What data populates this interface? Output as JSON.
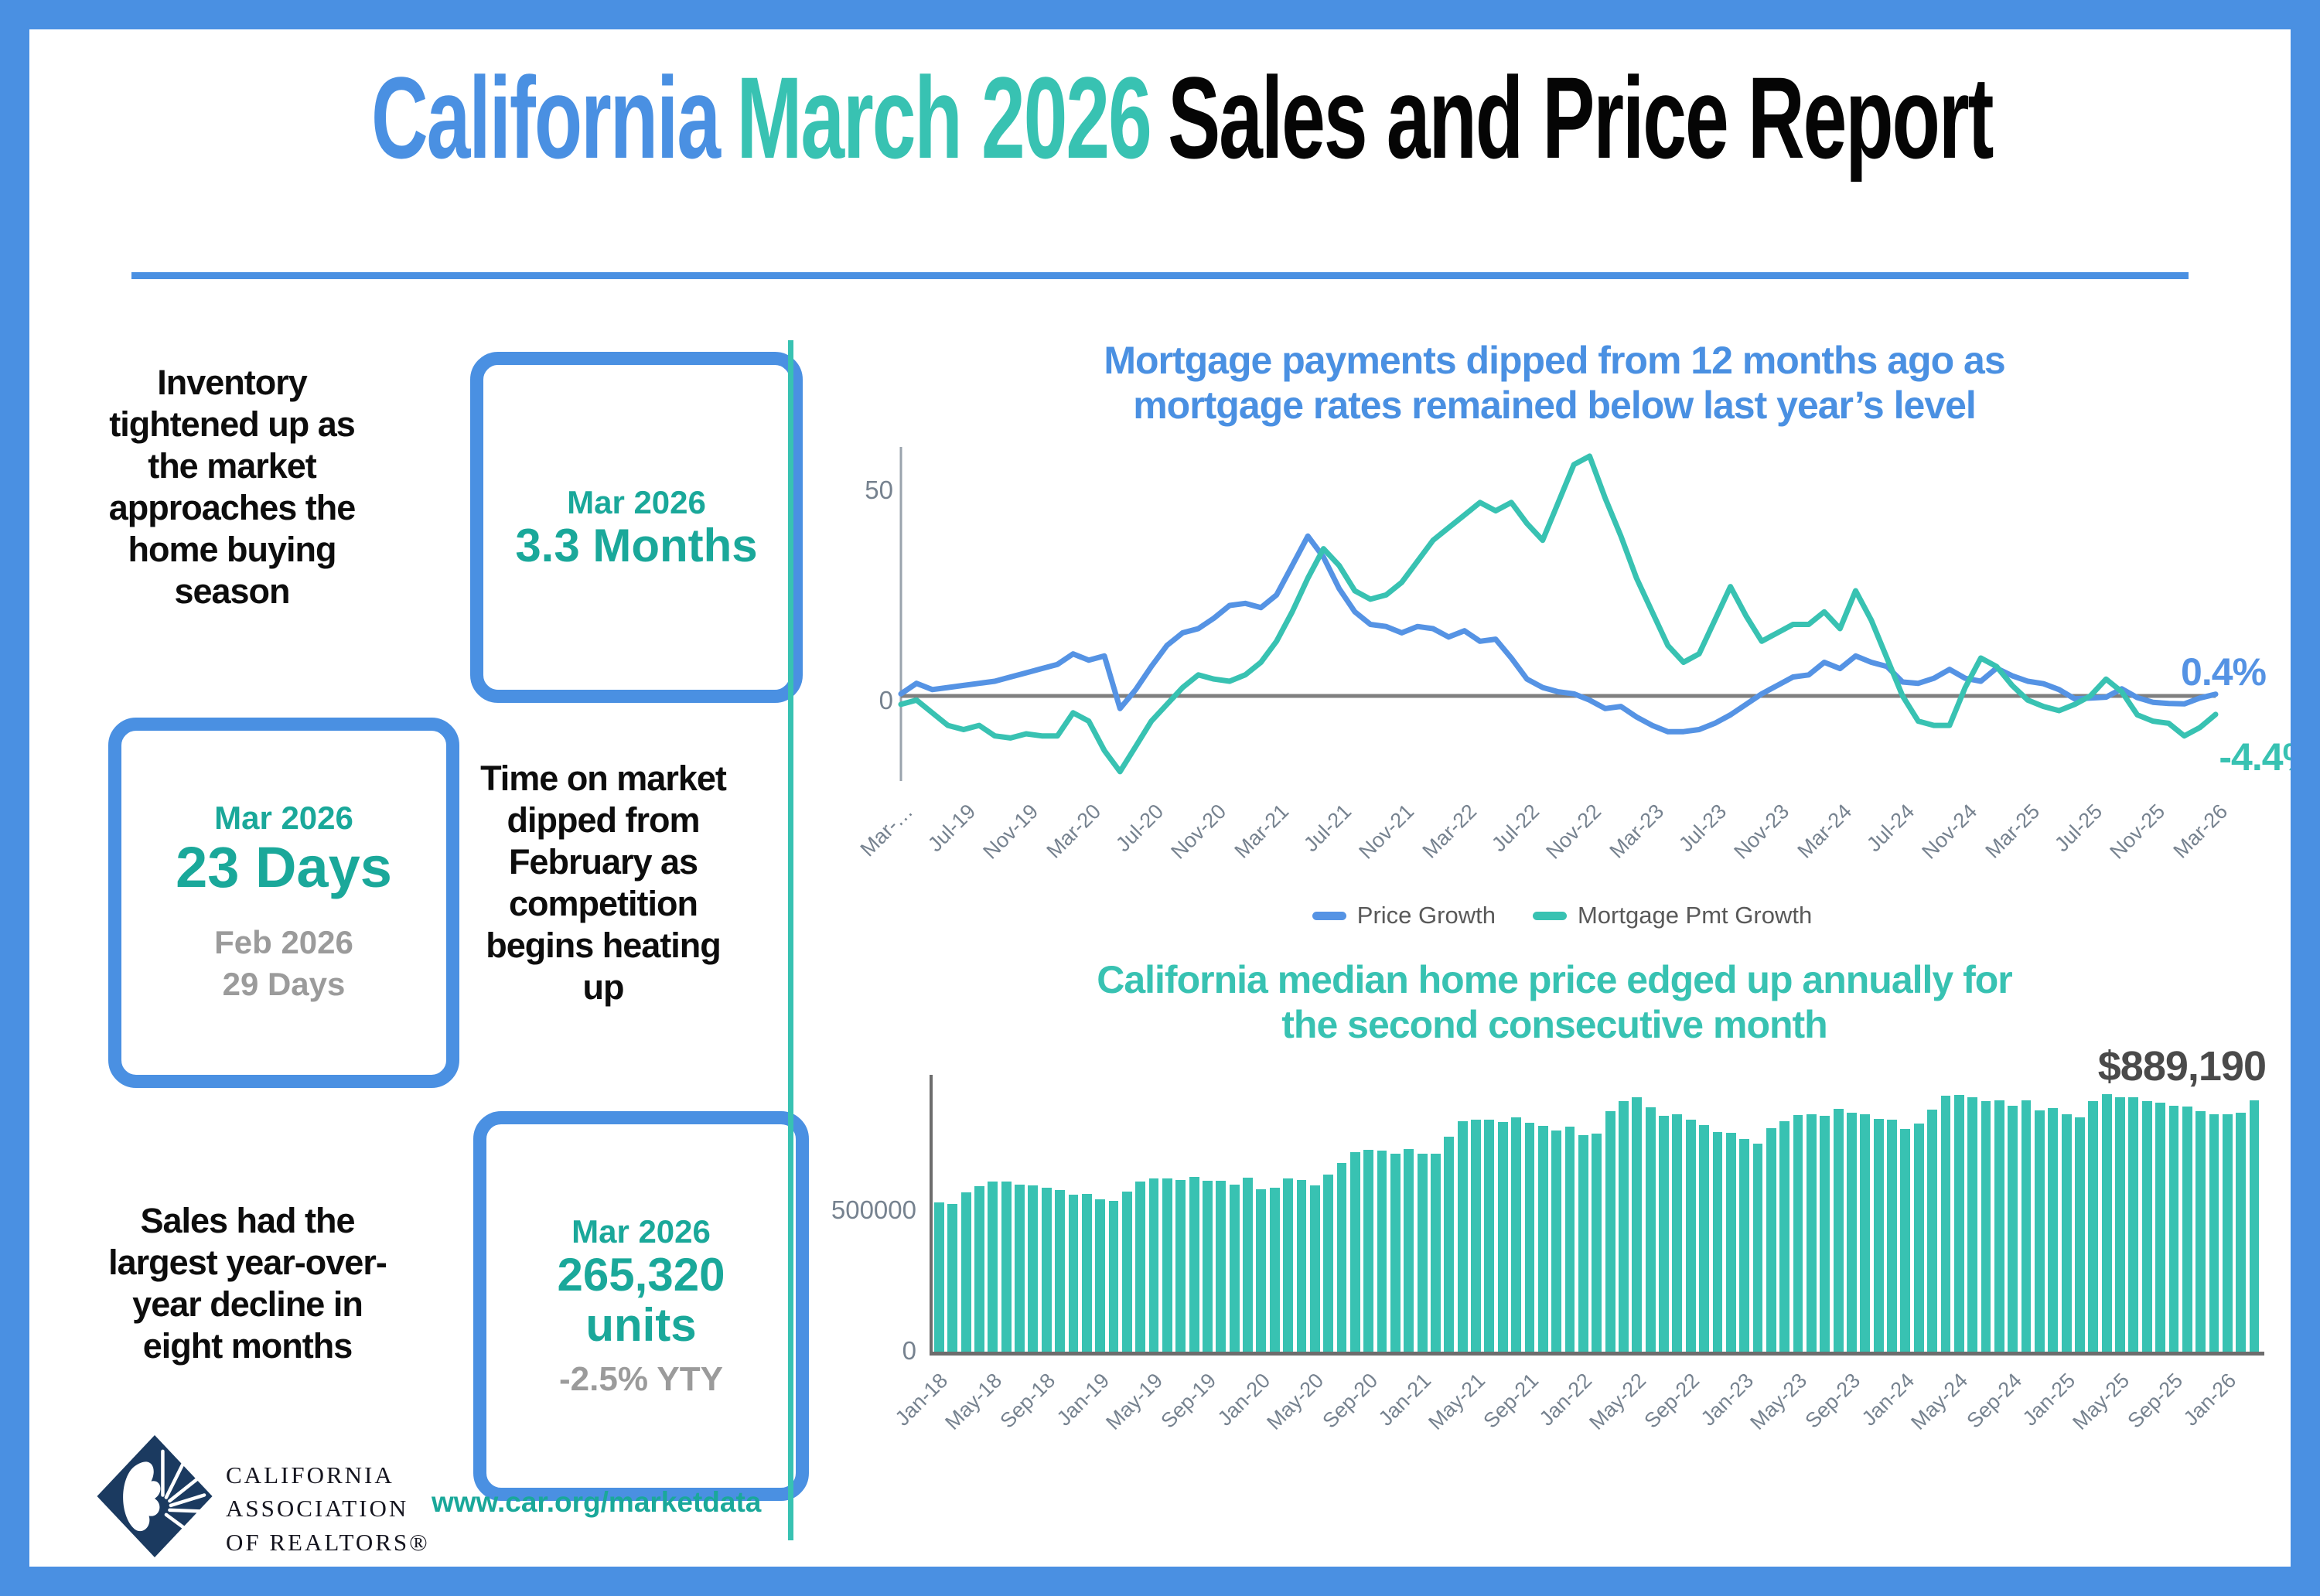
{
  "title": {
    "part1": "California",
    "part2": "March 2026",
    "part3": "Sales and Price Report"
  },
  "stats": [
    {
      "text": "Inventory tightened up as the market approaches the home buying season",
      "box": {
        "period": "Mar 2026",
        "value": "3.3 Months"
      }
    },
    {
      "text": "Time on market dipped from February as competition begins heating up",
      "box": {
        "period": "Mar 2026",
        "value": "23 Days",
        "prev_period": "Feb 2026",
        "prev_value": "29 Days"
      }
    },
    {
      "text": "Sales had the largest year-over-year decline in eight months",
      "box": {
        "period": "Mar 2026",
        "value": "265,320",
        "value2": "units",
        "sub": "-2.5% YTY"
      }
    }
  ],
  "footer": {
    "logo_lines": [
      "CALIFORNIA",
      "ASSOCIATION",
      "OF REALTORS®"
    ],
    "url": "www.car.org/marketdata"
  },
  "colors": {
    "blue": "#4A90E2",
    "line_blue": "#5593E4",
    "teal": "#38C2B2",
    "teal_dark": "#1AA89A",
    "gray": "#9B9B9B",
    "slate": "#76828F",
    "ink": "#0D0D0D",
    "navy": "#1B3A60",
    "label_dark": "#4A4A4A",
    "zero_line": "#7F7F7F",
    "axis_gray": "#6D6D6D"
  },
  "chart_data": [
    {
      "type": "line",
      "title": "Mortgage payments dipped from 12 months ago as mortgage rates remained below last year’s level",
      "title_lines": [
        "Mortgage payments dipped from 12 months ago as",
        "mortgage rates remained below last year’s level"
      ],
      "x_start": "Mar-19",
      "x_end": "Mar-26",
      "n_months": 85,
      "x_tick_labels": [
        "Mar-…",
        "Jul-19",
        "Nov-19",
        "Mar-20",
        "Jul-20",
        "Nov-20",
        "Mar-21",
        "Jul-21",
        "Nov-21",
        "Mar-22",
        "Jul-22",
        "Nov-22",
        "Mar-23",
        "Jul-23",
        "Nov-23",
        "Mar-24",
        "Jul-24",
        "Nov-24",
        "Mar-25",
        "Jul-25",
        "Nov-25",
        "Mar-26"
      ],
      "ytick_labels": [
        "50",
        "0"
      ],
      "ylim": [
        -21,
        61
      ],
      "grid": false,
      "legend_position": "bottom",
      "series": [
        {
          "name": "Price Growth",
          "color": "#5593E4",
          "values": [
            0.5,
            3,
            1.5,
            2,
            2.5,
            3,
            3.5,
            4.5,
            5.5,
            6.5,
            7.5,
            10,
            8.5,
            9.5,
            -3,
            1.5,
            7,
            12,
            15,
            16,
            18.5,
            21.5,
            22,
            21,
            24,
            31,
            38,
            33,
            25.5,
            20,
            17,
            16.5,
            15,
            16.5,
            16,
            14,
            15.5,
            13,
            13.5,
            9,
            4,
            2,
            1,
            0.5,
            -1,
            -3,
            -2.5,
            -5,
            -7,
            -8.5,
            -8.5,
            -8,
            -6.5,
            -4.5,
            -2,
            0.5,
            2.5,
            4.5,
            5,
            8,
            6.5,
            9.5,
            8,
            7,
            3.3,
            3,
            4.2,
            6.3,
            4.2,
            3.5,
            6.6,
            4.8,
            3.5,
            2.9,
            1.5,
            -0.7,
            -0.5,
            -0.3,
            1.7,
            -0.4,
            -1.5,
            -1.8,
            -1.9,
            -0.5,
            0.4
          ]
        },
        {
          "name": "Mortgage Pmt Growth",
          "color": "#38C2B2",
          "values": [
            -2,
            -1,
            -4,
            -7,
            -8,
            -7,
            -9.5,
            -10,
            -9,
            -9.5,
            -9.5,
            -4,
            -6,
            -13,
            -18,
            -12,
            -6,
            -2,
            2,
            5,
            4,
            3.5,
            5,
            8,
            13,
            20,
            28,
            35,
            31,
            25,
            23,
            24,
            27,
            32,
            37,
            40,
            43,
            46,
            44,
            46,
            41,
            37,
            46,
            55,
            57,
            47,
            38,
            28,
            20,
            12,
            8,
            10,
            18,
            26,
            19,
            13,
            15,
            17,
            17,
            20,
            16,
            25,
            18,
            9,
            0,
            -6,
            -7,
            -7,
            2,
            9,
            7,
            2.5,
            -1,
            -2.5,
            -3.5,
            -2,
            0,
            4,
            1,
            -4.5,
            -6,
            -6.5,
            -9.5,
            -7.5,
            -4.4
          ]
        }
      ],
      "annotations": [
        {
          "text": "0.4%",
          "series": "Price Growth"
        },
        {
          "text": "-4.4%",
          "series": "Mortgage Pmt Growth"
        }
      ]
    },
    {
      "type": "bar",
      "title": "California median home price edged up annually for the second consecutive month",
      "title_lines": [
        "California median home price edged up annually for",
        "the second consecutive month"
      ],
      "x_start": "Jan-18",
      "x_end": "Mar-26",
      "n_months": 99,
      "x_tick_labels": [
        "Jan-18",
        "May-18",
        "Sep-18",
        "Jan-19",
        "May-19",
        "Sep-19",
        "Jan-20",
        "May-20",
        "Sep-20",
        "Jan-21",
        "May-21",
        "Sep-21",
        "Jan-22",
        "May-22",
        "Sep-22",
        "Jan-23",
        "May-23",
        "Sep-23",
        "Jan-24",
        "May-24",
        "Sep-24",
        "Jan-25",
        "May-25",
        "Sep-25",
        "Jan-26"
      ],
      "ytick_labels": [
        "500000",
        "0"
      ],
      "ylim": [
        0,
        978000
      ],
      "bar_color": "#38C2B2",
      "data_label": {
        "text": "$889,190",
        "applies_to": "Mar-26",
        "value": 889190
      },
      "values": [
        527000,
        522000,
        564000,
        584000,
        600000,
        602000,
        591000,
        587000,
        578000,
        572000,
        554000,
        557000,
        538000,
        534000,
        565000,
        602000,
        611000,
        611000,
        607000,
        617000,
        605000,
        605000,
        589000,
        615000,
        575000,
        578000,
        612000,
        606000,
        588000,
        626000,
        666000,
        706000,
        712000,
        711000,
        699000,
        717000,
        699000,
        699000,
        759000,
        814000,
        819000,
        819000,
        811000,
        827000,
        809000,
        798000,
        782000,
        796000,
        765000,
        771000,
        849000,
        884000,
        898000,
        863000,
        833000,
        839000,
        821000,
        801000,
        777000,
        774000,
        751000,
        735000,
        791000,
        815000,
        836000,
        838000,
        832000,
        859000,
        843000,
        840000,
        822000,
        819000,
        788000,
        806000,
        854000,
        904000,
        908000,
        900000,
        886000,
        888000,
        868000,
        888000,
        852000,
        861000,
        838000,
        829000,
        884000,
        910000,
        900000,
        899000,
        884000,
        880000,
        870000,
        865000,
        850000,
        840000,
        838000,
        845000,
        889190
      ]
    }
  ]
}
